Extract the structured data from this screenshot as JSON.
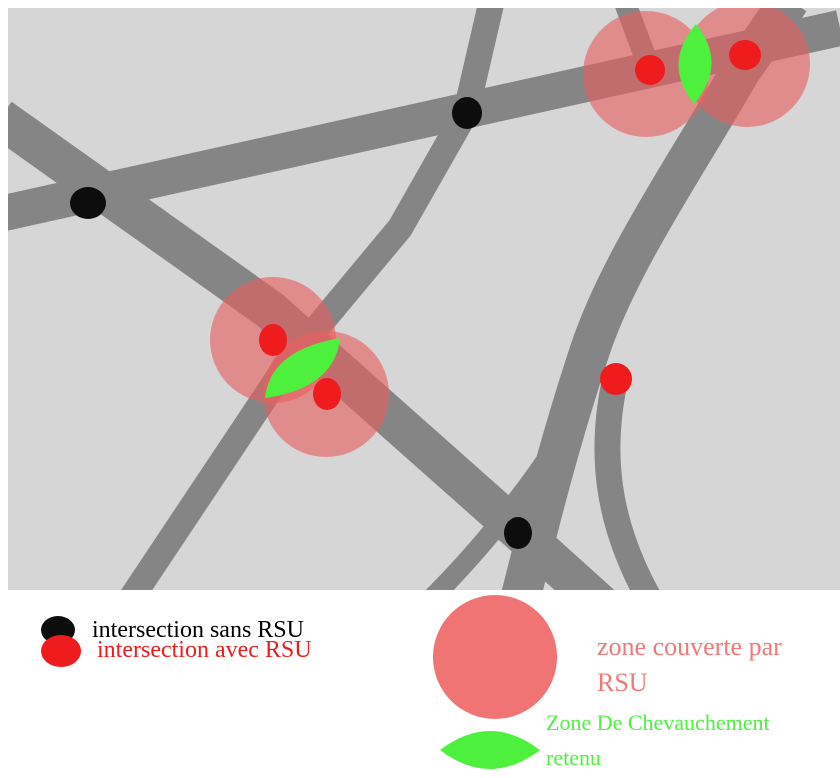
{
  "colors": {
    "map_background": "#d6d6d6",
    "road": "#858585",
    "coverage_zone": "#e96060",
    "overlap_zone": "#4ef03e",
    "rsu_intersection": "#ee1c1c",
    "plain_intersection": "#0d0d0d",
    "legend_black_text": "#000000",
    "legend_red_text": "#ee1c1c",
    "legend_coverage_text": "#f07a7a",
    "legend_green_text": "#4ef03e"
  },
  "legend": {
    "no_rsu": "intersection sans RSU",
    "with_rsu": "intersection avec RSU",
    "coverage_line1": "zone couverte par",
    "coverage_line2": "RSU",
    "overlap_line1": "Zone De Chevauchement",
    "overlap_line2": "retenu"
  }
}
